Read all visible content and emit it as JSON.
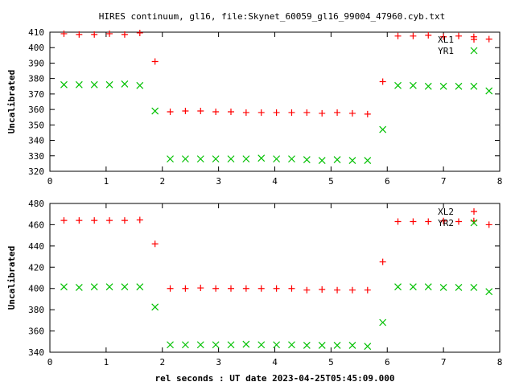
{
  "title": "HIRES continuum, gl16, file:Skynet_60059_gl16_99004_47960.cyb.txt",
  "colors": {
    "series1": "#ff0000",
    "series2": "#00c000",
    "axis": "#000000"
  },
  "chart_data": [
    {
      "type": "scatter",
      "ylabel": "Uncalibrated",
      "xlabel": "",
      "xlim": [
        0,
        8
      ],
      "ylim": [
        320,
        410
      ],
      "xticks": [
        0,
        1,
        2,
        3,
        4,
        5,
        6,
        7,
        8
      ],
      "yticks": [
        320,
        330,
        340,
        350,
        360,
        370,
        380,
        390,
        400,
        410
      ],
      "legend": "top-right",
      "x": [
        0.25,
        0.52,
        0.79,
        1.06,
        1.33,
        1.6,
        1.87,
        2.14,
        2.41,
        2.68,
        2.95,
        3.22,
        3.49,
        3.76,
        4.03,
        4.3,
        4.57,
        4.84,
        5.11,
        5.38,
        5.65,
        5.92,
        6.19,
        6.46,
        6.73,
        7.0,
        7.27,
        7.54,
        7.81
      ],
      "series": [
        {
          "name": "XL1",
          "marker": "plus",
          "values": [
            409,
            408.5,
            408.5,
            409,
            408.5,
            409.5,
            391,
            358.5,
            359,
            359,
            358.5,
            358.5,
            358,
            358,
            358,
            358,
            358,
            357.5,
            358,
            357.5,
            357,
            378,
            407.5,
            407.5,
            408,
            407,
            407.5,
            407,
            405.5
          ]
        },
        {
          "name": "YR1",
          "marker": "cross",
          "values": [
            376,
            376,
            376,
            376,
            376.5,
            375.5,
            359,
            328,
            328,
            328,
            328,
            328,
            328,
            328.5,
            328,
            328,
            327.5,
            327,
            327.5,
            327,
            327,
            347,
            375.5,
            375.5,
            375,
            375,
            375,
            375,
            372
          ]
        }
      ]
    },
    {
      "type": "scatter",
      "ylabel": "Uncalibrated",
      "xlabel": "rel seconds : UT date 2023-04-25T05:45:09.000",
      "xlim": [
        0,
        8
      ],
      "ylim": [
        340,
        480
      ],
      "xticks": [
        0,
        1,
        2,
        3,
        4,
        5,
        6,
        7,
        8
      ],
      "yticks": [
        340,
        360,
        380,
        400,
        420,
        440,
        460,
        480
      ],
      "legend": "top-right",
      "x": [
        0.25,
        0.52,
        0.79,
        1.06,
        1.33,
        1.6,
        1.87,
        2.14,
        2.41,
        2.68,
        2.95,
        3.22,
        3.49,
        3.76,
        4.03,
        4.3,
        4.57,
        4.84,
        5.11,
        5.38,
        5.65,
        5.92,
        6.19,
        6.46,
        6.73,
        7.0,
        7.27,
        7.54,
        7.81
      ],
      "series": [
        {
          "name": "XL2",
          "marker": "plus",
          "values": [
            464,
            464,
            464,
            464,
            464,
            464.5,
            442,
            400,
            400,
            400.5,
            400,
            400,
            400,
            400,
            400,
            400,
            398.5,
            399,
            398.5,
            398.5,
            398.5,
            425,
            463,
            463,
            463,
            463.5,
            463,
            463.5,
            460
          ]
        },
        {
          "name": "YR2",
          "marker": "cross",
          "values": [
            401.5,
            401,
            401.5,
            401.5,
            401.5,
            401.5,
            382.5,
            347,
            347,
            347,
            347,
            347,
            347.5,
            347,
            347,
            347,
            346.5,
            346.5,
            346.5,
            346.5,
            345.5,
            368,
            401.5,
            401.5,
            401.5,
            401,
            401,
            401,
            397
          ]
        }
      ]
    }
  ]
}
